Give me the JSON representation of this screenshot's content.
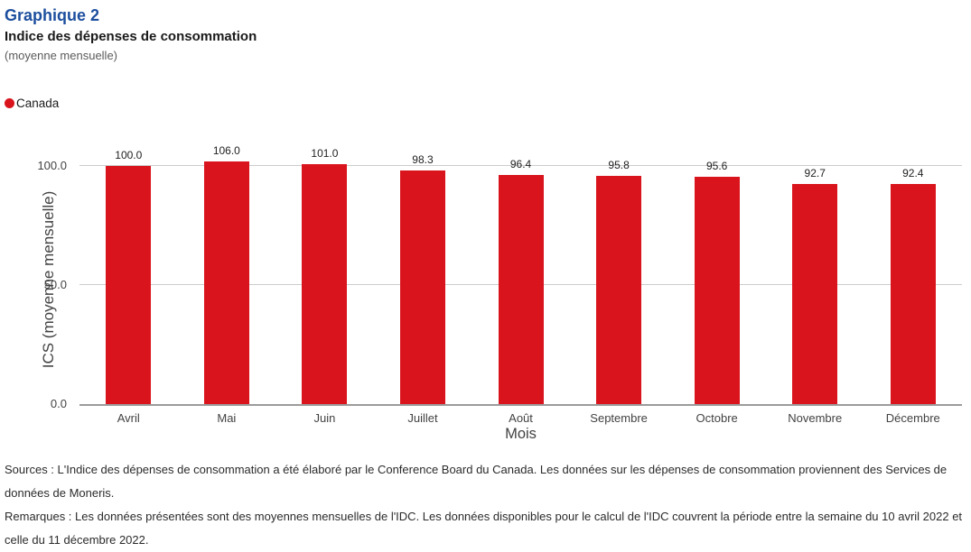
{
  "header": {
    "graphic_label": "Graphique 2",
    "title": "Indice des dépenses de consommation",
    "subtitle": "(moyenne mensuelle)"
  },
  "legend": {
    "items": [
      {
        "label": "Canada",
        "marker": "circle-icon",
        "color": "#d9141c"
      }
    ]
  },
  "chart_data": {
    "type": "bar",
    "title": "Indice des dépenses de consommation (moyenne mensuelle)",
    "categories": [
      "Avril",
      "Mai",
      "Juin",
      "Juillet",
      "Août",
      "Septembre",
      "Octobre",
      "Novembre",
      "Décembre"
    ],
    "series": [
      {
        "name": "Canada",
        "color": "#d9141c",
        "values": [
          100.0,
          106.0,
          101.0,
          98.3,
          96.4,
          95.8,
          95.6,
          92.7,
          92.4
        ]
      }
    ],
    "value_labels": [
      "100.0",
      "106.0",
      "101.0",
      "98.3",
      "96.4",
      "95.8",
      "95.6",
      "92.7",
      "92.4"
    ],
    "xlabel": "Mois",
    "ylabel": "ICS (moyenne mensuelle)",
    "ylim": [
      0,
      110
    ],
    "yticks": [
      {
        "value": 0,
        "label": "0.0"
      },
      {
        "value": 50,
        "label": "50.0"
      },
      {
        "value": 100,
        "label": "100.0"
      }
    ],
    "grid": true,
    "legend_position": "top-left"
  },
  "notes": {
    "sources": "Sources : L'Indice des dépenses de consommation a été élaboré par le Conference Board du Canada. Les données sur les dépenses de consommation proviennent des Services de données de Moneris.",
    "remarks": "Remarques : Les données présentées sont des moyennes mensuelles de l'IDC. Les données disponibles pour le calcul de l'IDC couvrent la période entre la semaine du 10 avril 2022 et celle du 11 décembre 2022."
  },
  "colors": {
    "bar": "#d9141c",
    "title_blue": "#1d4f9e",
    "gridline": "#cccccc",
    "axis_line": "#9b9b9b"
  }
}
